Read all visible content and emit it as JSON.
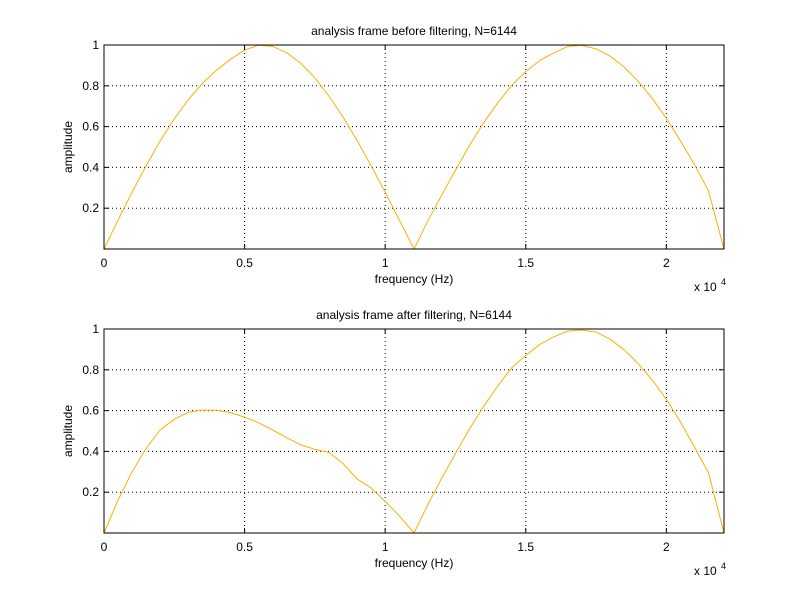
{
  "chart_data": [
    {
      "type": "line",
      "title": "analysis frame before filtering, N=6144",
      "xlabel": "frequency (Hz)",
      "ylabel": "amplitude",
      "x_multiplier": {
        "base": "x 10",
        "exponent": "4"
      },
      "xlim": [
        0,
        22050
      ],
      "ylim": [
        0,
        1
      ],
      "xticks": [
        0,
        5000,
        10000,
        15000,
        20000
      ],
      "xtick_labels": [
        "0",
        "0.5",
        "1",
        "1.5",
        "2"
      ],
      "yticks": [
        0.2,
        0.4,
        0.6,
        0.8,
        1
      ],
      "ytick_labels": [
        "0.2",
        "0.4",
        "0.6",
        "0.8",
        "1"
      ],
      "grid": true,
      "line_color": "#ffb000",
      "series": [
        {
          "x": [
            0,
            500,
            1000,
            1500,
            2000,
            2500,
            3000,
            3500,
            4000,
            4500,
            5000,
            5500,
            6000,
            6500,
            7000,
            7500,
            8000,
            8500,
            9000,
            9500,
            10000,
            10500,
            11025,
            11500,
            12000,
            12500,
            13000,
            13500,
            14000,
            14500,
            15000,
            15500,
            16000,
            16500,
            17000,
            17500,
            18000,
            18500,
            19000,
            19500,
            20000,
            20500,
            21000,
            21500,
            22050
          ],
          "y": [
            0.0,
            0.142,
            0.279,
            0.409,
            0.53,
            0.638,
            0.733,
            0.812,
            0.876,
            0.93,
            0.975,
            0.999,
            0.993,
            0.962,
            0.91,
            0.839,
            0.75,
            0.647,
            0.532,
            0.408,
            0.278,
            0.143,
            0.0,
            0.134,
            0.262,
            0.387,
            0.508,
            0.618,
            0.716,
            0.802,
            0.87,
            0.924,
            0.962,
            0.993,
            0.998,
            0.981,
            0.945,
            0.892,
            0.822,
            0.738,
            0.64,
            0.531,
            0.413,
            0.285,
            0.0
          ]
        }
      ]
    },
    {
      "type": "line",
      "title": "analysis frame after filtering, N=6144",
      "xlabel": "frequency (Hz)",
      "ylabel": "amplitude",
      "x_multiplier": {
        "base": "x 10",
        "exponent": "4"
      },
      "xlim": [
        0,
        22050
      ],
      "ylim": [
        0,
        1
      ],
      "xticks": [
        0,
        5000,
        10000,
        15000,
        20000
      ],
      "xtick_labels": [
        "0",
        "0.5",
        "1",
        "1.5",
        "2"
      ],
      "yticks": [
        0.2,
        0.4,
        0.6,
        0.8,
        1
      ],
      "ytick_labels": [
        "0.2",
        "0.4",
        "0.6",
        "0.8",
        "1"
      ],
      "grid": true,
      "line_color": "#ffb000",
      "series": [
        {
          "x": [
            0,
            500,
            1000,
            1500,
            2000,
            2500,
            3000,
            3500,
            4000,
            4500,
            5000,
            5500,
            6000,
            6500,
            7000,
            7500,
            8000,
            8500,
            9000,
            9500,
            10000,
            10500,
            11025,
            11500,
            12000,
            12500,
            13000,
            13500,
            14000,
            14500,
            15000,
            15500,
            16000,
            16500,
            17000,
            17500,
            18000,
            18500,
            19000,
            19500,
            20000,
            20500,
            21000,
            21500,
            22050
          ],
          "y": [
            0.0,
            0.162,
            0.3,
            0.415,
            0.505,
            0.558,
            0.592,
            0.603,
            0.602,
            0.59,
            0.568,
            0.54,
            0.505,
            0.467,
            0.432,
            0.41,
            0.395,
            0.34,
            0.265,
            0.22,
            0.155,
            0.085,
            0.0,
            0.135,
            0.265,
            0.39,
            0.51,
            0.62,
            0.72,
            0.81,
            0.87,
            0.925,
            0.962,
            0.99,
            0.995,
            0.985,
            0.95,
            0.898,
            0.83,
            0.75,
            0.655,
            0.545,
            0.42,
            0.295,
            0.0
          ]
        }
      ]
    }
  ]
}
